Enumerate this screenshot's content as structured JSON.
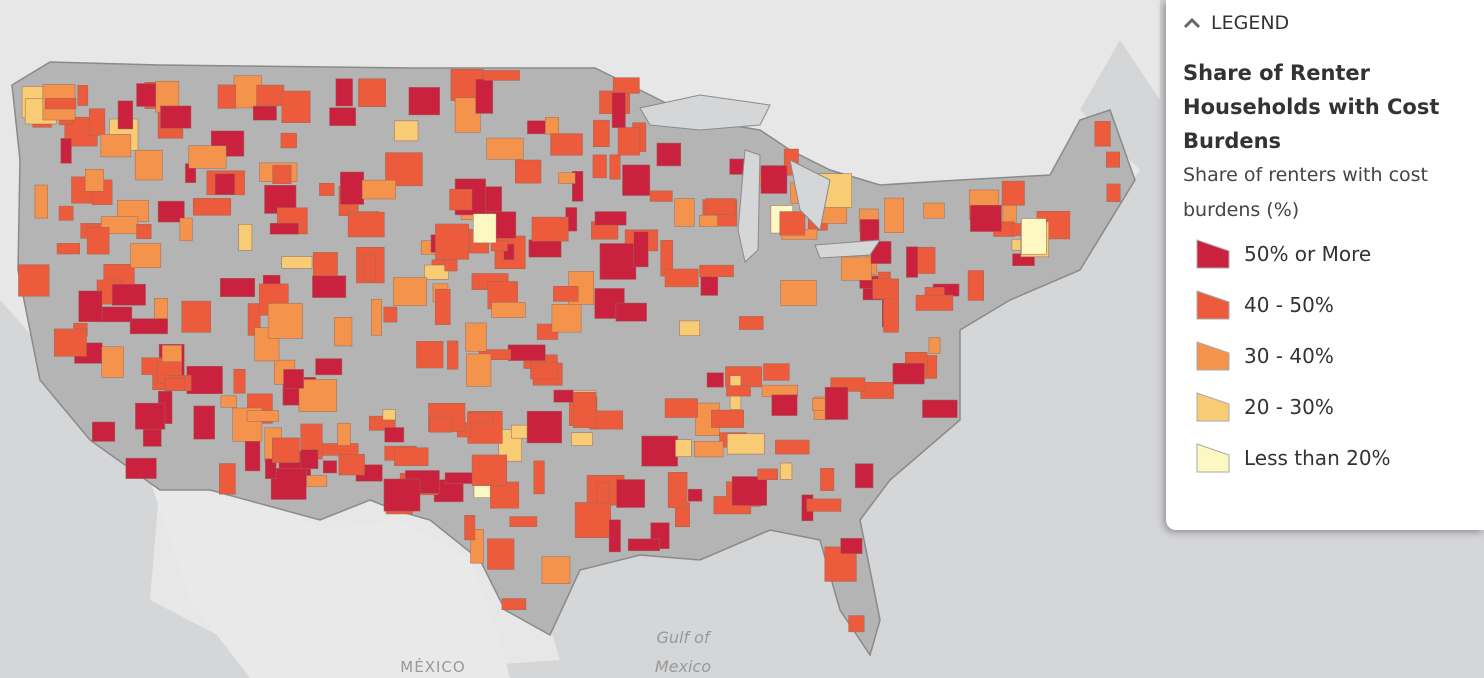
{
  "legend": {
    "header": "LEGEND",
    "title": "Share of Renter Households with Cost Burdens",
    "subtitle": "Share of renters with cost burdens (%)",
    "items": [
      {
        "label": "50% or More",
        "color": "#c9213e"
      },
      {
        "label": "40 - 50%",
        "color": "#ec5b3b"
      },
      {
        "label": "30 - 40%",
        "color": "#f4944c"
      },
      {
        "label": "20 - 30%",
        "color": "#f8cc74"
      },
      {
        "label": "Less than 20%",
        "color": "#fdf7c2"
      }
    ]
  },
  "map": {
    "labels": [
      "MÉXICO",
      "Gulf of",
      "Mexico"
    ]
  }
}
